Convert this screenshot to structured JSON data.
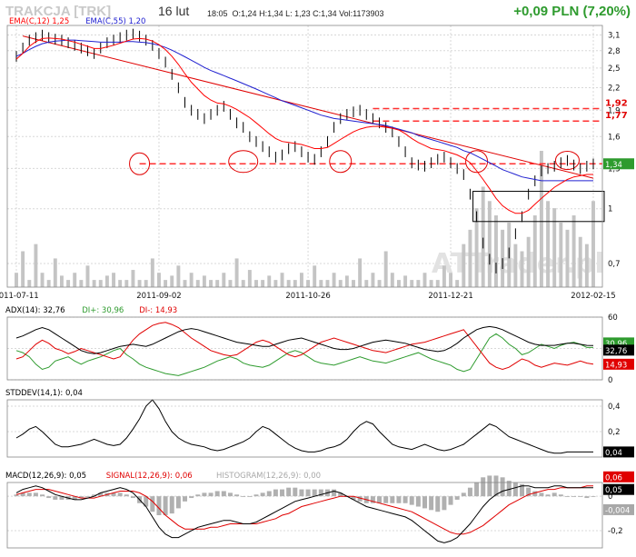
{
  "header": {
    "ticker": "TRAKCJA [TRK]",
    "date": "16 lut",
    "time": "18:05",
    "quote_line": "O:1,24  H:1,34  L: 1,23  C:1,34  Vol:1173903",
    "change": "+0,09 PLN (7,20%)"
  },
  "watermark": "ATTrader.pl",
  "colors": {
    "price": "#000000",
    "ema12": "#ff0000",
    "ema55": "#2020d0",
    "up": "#2e9b2e",
    "down": "#e00000",
    "grid": "#d8d8d8",
    "volume": "#c4c4c4"
  },
  "chart_data": [
    {
      "type": "line",
      "legend": [
        {
          "label": "EMA(C,12) 1,25",
          "color": "#ff0000"
        },
        {
          "label": "EMA(C,55) 1,20",
          "color": "#2020d0"
        }
      ],
      "x_ticks": [
        "2011-07-11",
        "2011-09-02",
        "2011-10-26",
        "2011-12-21",
        "2012-02-15"
      ],
      "y_ticks": [
        "3,1",
        "2,8",
        "2,5",
        "2,2",
        "1,9",
        "1,6",
        "1,3",
        "1",
        "0,7"
      ],
      "ylim": [
        0.6,
        3.3
      ],
      "y_scale": "log",
      "grid": true,
      "levels": [
        {
          "value": 1.92,
          "label": "1,92"
        },
        {
          "value": 1.77,
          "label": "1,77"
        },
        {
          "value": 1.34,
          "label": "1,34"
        }
      ],
      "last_price": {
        "value": 1.34,
        "label": "1,34"
      },
      "close": [
        2.7,
        2.85,
        3.0,
        3.05,
        3.1,
        3.05,
        3.02,
        3.0,
        2.95,
        2.9,
        2.85,
        2.8,
        2.75,
        2.85,
        2.95,
        3.0,
        3.05,
        3.1,
        3.12,
        3.08,
        3.0,
        2.9,
        2.75,
        2.6,
        2.4,
        2.2,
        2.0,
        1.9,
        1.85,
        1.8,
        1.85,
        1.9,
        1.95,
        1.85,
        1.75,
        1.7,
        1.6,
        1.55,
        1.5,
        1.45,
        1.4,
        1.42,
        1.48,
        1.5,
        1.45,
        1.4,
        1.38,
        1.45,
        1.55,
        1.7,
        1.8,
        1.85,
        1.88,
        1.9,
        1.85,
        1.8,
        1.75,
        1.7,
        1.65,
        1.55,
        1.45,
        1.35,
        1.33,
        1.32,
        1.35,
        1.38,
        1.4,
        1.35,
        1.3,
        1.25,
        1.1,
        0.95,
        0.8,
        0.72,
        0.68,
        0.7,
        0.75,
        0.85,
        0.95,
        1.1,
        1.2,
        1.28,
        1.3,
        1.32,
        1.35,
        1.37,
        1.33,
        1.3,
        1.32,
        1.34
      ],
      "ema12": [
        2.65,
        2.75,
        2.88,
        2.97,
        3.03,
        3.04,
        3.03,
        3.02,
        2.99,
        2.96,
        2.92,
        2.88,
        2.84,
        2.84,
        2.87,
        2.9,
        2.94,
        2.98,
        3.02,
        3.03,
        3.02,
        2.98,
        2.91,
        2.82,
        2.7,
        2.56,
        2.41,
        2.28,
        2.18,
        2.09,
        2.03,
        1.99,
        1.98,
        1.95,
        1.91,
        1.86,
        1.81,
        1.75,
        1.69,
        1.63,
        1.58,
        1.55,
        1.54,
        1.53,
        1.52,
        1.5,
        1.48,
        1.48,
        1.49,
        1.53,
        1.57,
        1.61,
        1.65,
        1.68,
        1.7,
        1.71,
        1.71,
        1.7,
        1.69,
        1.67,
        1.63,
        1.58,
        1.54,
        1.51,
        1.48,
        1.47,
        1.46,
        1.44,
        1.42,
        1.39,
        1.35,
        1.28,
        1.21,
        1.14,
        1.07,
        1.02,
        0.99,
        0.97,
        0.97,
        0.99,
        1.03,
        1.07,
        1.11,
        1.15,
        1.18,
        1.21,
        1.23,
        1.24,
        1.25,
        1.25
      ],
      "ema55": [
        2.7,
        2.75,
        2.82,
        2.88,
        2.93,
        2.96,
        2.98,
        2.99,
        3.0,
        3.0,
        2.99,
        2.98,
        2.97,
        2.96,
        2.96,
        2.96,
        2.96,
        2.97,
        2.97,
        2.96,
        2.95,
        2.93,
        2.9,
        2.86,
        2.81,
        2.75,
        2.69,
        2.63,
        2.57,
        2.51,
        2.46,
        2.42,
        2.38,
        2.34,
        2.3,
        2.26,
        2.22,
        2.18,
        2.14,
        2.1,
        2.06,
        2.02,
        1.99,
        1.96,
        1.93,
        1.9,
        1.87,
        1.84,
        1.82,
        1.8,
        1.79,
        1.78,
        1.77,
        1.76,
        1.75,
        1.74,
        1.73,
        1.72,
        1.7,
        1.68,
        1.66,
        1.64,
        1.61,
        1.59,
        1.57,
        1.55,
        1.53,
        1.51,
        1.49,
        1.46,
        1.44,
        1.41,
        1.38,
        1.35,
        1.32,
        1.29,
        1.27,
        1.25,
        1.23,
        1.22,
        1.21,
        1.2,
        1.2,
        1.2,
        1.2,
        1.2,
        1.2,
        1.2,
        1.2,
        1.2
      ],
      "volume": [
        0.1,
        0.25,
        0.05,
        0.3,
        0.1,
        0.05,
        0.2,
        0.08,
        0.05,
        0.1,
        0.05,
        0.15,
        0.05,
        0.05,
        0.08,
        0.1,
        0.05,
        0.05,
        0.12,
        0.05,
        0.05,
        0.2,
        0.1,
        0.05,
        0.08,
        0.15,
        0.05,
        0.1,
        0.05,
        0.08,
        0.05,
        0.05,
        0.1,
        0.05,
        0.2,
        0.05,
        0.12,
        0.05,
        0.05,
        0.08,
        0.05,
        0.1,
        0.05,
        0.05,
        0.1,
        0.05,
        0.15,
        0.05,
        0.05,
        0.1,
        0.05,
        0.08,
        0.05,
        0.2,
        0.05,
        0.1,
        0.05,
        0.25,
        0.1,
        0.05,
        0.08,
        0.05,
        0.05,
        0.1,
        0.05,
        0.05,
        0.15,
        0.1,
        0.05,
        0.3,
        0.4,
        0.55,
        0.7,
        0.6,
        0.5,
        0.4,
        0.45,
        0.3,
        0.25,
        0.35,
        0.5,
        0.95,
        0.6,
        0.55,
        0.45,
        0.4,
        0.5,
        0.35,
        0.3,
        0.6
      ]
    },
    {
      "type": "line",
      "title": "ADX(14): 32,76",
      "legend": [
        {
          "label": "ADX(14): 32,76",
          "color": "#000000"
        },
        {
          "label": "DI+: 30,96",
          "color": "#2e9b2e"
        },
        {
          "label": "DI-: 14,93",
          "color": "#e00000"
        }
      ],
      "y_ticks": [
        "60",
        "30",
        "0"
      ],
      "ylim": [
        0,
        60
      ],
      "last_labels": [
        {
          "value": 30.96,
          "label": "30,96"
        },
        {
          "value": 32.76,
          "label": "32,76"
        },
        {
          "value": 14.93,
          "label": "14,93"
        }
      ],
      "adx": [
        40,
        42,
        45,
        48,
        50,
        48,
        44,
        40,
        36,
        32,
        28,
        26,
        25,
        26,
        28,
        30,
        32,
        33,
        34,
        33,
        32,
        34,
        37,
        40,
        43,
        46,
        48,
        49,
        48,
        46,
        44,
        42,
        40,
        38,
        36,
        35,
        34,
        33,
        32,
        32,
        34,
        36,
        38,
        39,
        40,
        38,
        36,
        34,
        32,
        30,
        29,
        29,
        30,
        32,
        34,
        36,
        37,
        38,
        37,
        36,
        35,
        33,
        31,
        29,
        28,
        27,
        28,
        31,
        35,
        40,
        44,
        48,
        50,
        51,
        50,
        48,
        45,
        42,
        39,
        36,
        34,
        33,
        33,
        33,
        34,
        35,
        35,
        34,
        33,
        32.76
      ],
      "diplus": [
        28,
        26,
        22,
        15,
        10,
        12,
        18,
        20,
        22,
        18,
        15,
        18,
        20,
        22,
        25,
        28,
        30,
        24,
        20,
        15,
        12,
        10,
        8,
        6,
        5,
        4,
        6,
        8,
        10,
        12,
        15,
        18,
        20,
        22,
        20,
        16,
        14,
        13,
        12,
        14,
        18,
        22,
        26,
        28,
        26,
        22,
        18,
        16,
        15,
        14,
        16,
        18,
        20,
        22,
        20,
        18,
        17,
        16,
        18,
        20,
        22,
        24,
        26,
        23,
        20,
        18,
        16,
        14,
        10,
        8,
        10,
        20,
        30,
        40,
        44,
        40,
        34,
        30,
        24,
        26,
        30,
        34,
        32,
        30,
        33,
        35,
        36,
        34,
        31,
        30.96
      ],
      "diminus": [
        20,
        22,
        28,
        34,
        38,
        35,
        30,
        28,
        25,
        27,
        30,
        28,
        26,
        24,
        22,
        20,
        22,
        30,
        38,
        44,
        48,
        52,
        54,
        55,
        53,
        50,
        45,
        40,
        36,
        32,
        28,
        26,
        24,
        23,
        24,
        28,
        32,
        36,
        38,
        36,
        32,
        28,
        24,
        22,
        24,
        28,
        32,
        36,
        38,
        40,
        38,
        36,
        34,
        32,
        30,
        28,
        27,
        26,
        28,
        30,
        32,
        34,
        35,
        36,
        38,
        40,
        42,
        44,
        46,
        48,
        40,
        32,
        24,
        16,
        12,
        10,
        12,
        16,
        20,
        18,
        14,
        12,
        14,
        16,
        15,
        14,
        16,
        18,
        16,
        14.93
      ]
    },
    {
      "type": "line",
      "title": "STDDEV(14,1): 0,04",
      "y_ticks": [
        "0,4",
        "0,2"
      ],
      "ylim": [
        0,
        0.45
      ],
      "last_value": {
        "value": 0.04,
        "label": "0,04"
      },
      "values": [
        0.15,
        0.18,
        0.22,
        0.24,
        0.2,
        0.15,
        0.1,
        0.08,
        0.08,
        0.09,
        0.1,
        0.12,
        0.14,
        0.12,
        0.1,
        0.09,
        0.1,
        0.15,
        0.22,
        0.3,
        0.4,
        0.45,
        0.38,
        0.28,
        0.2,
        0.15,
        0.12,
        0.1,
        0.09,
        0.08,
        0.06,
        0.05,
        0.06,
        0.08,
        0.1,
        0.12,
        0.15,
        0.2,
        0.24,
        0.22,
        0.18,
        0.14,
        0.1,
        0.07,
        0.05,
        0.04,
        0.04,
        0.05,
        0.07,
        0.08,
        0.1,
        0.14,
        0.2,
        0.25,
        0.28,
        0.26,
        0.2,
        0.15,
        0.1,
        0.08,
        0.07,
        0.06,
        0.08,
        0.1,
        0.08,
        0.06,
        0.05,
        0.06,
        0.08,
        0.1,
        0.14,
        0.18,
        0.22,
        0.26,
        0.24,
        0.2,
        0.16,
        0.14,
        0.12,
        0.1,
        0.08,
        0.06,
        0.04,
        0.03,
        0.03,
        0.04,
        0.04,
        0.04,
        0.04,
        0.04
      ]
    },
    {
      "type": "line",
      "title": "MACD(12,26,9): 0,05",
      "legend": [
        {
          "label": "MACD(12,26,9): 0,05",
          "color": "#000000"
        },
        {
          "label": "SIGNAL(12,26,9): 0,06",
          "color": "#e00000"
        },
        {
          "label": "HISTOGRAM(12,26,9): 0,00",
          "color": "#a8a8a8"
        }
      ],
      "y_ticks": [
        "0",
        "-0,2"
      ],
      "ylim": [
        -0.3,
        0.08
      ],
      "last_labels": [
        {
          "value": 0.06,
          "label": "0,06"
        },
        {
          "value": 0.05,
          "label": "0,05"
        },
        {
          "value": -0.004,
          "label": "-0,004"
        }
      ],
      "macd": [
        0.02,
        0.04,
        0.05,
        0.06,
        0.05,
        0.03,
        0.01,
        0.0,
        -0.01,
        -0.02,
        -0.02,
        -0.01,
        0.0,
        0.02,
        0.03,
        0.04,
        0.05,
        0.04,
        0.02,
        -0.02,
        -0.06,
        -0.12,
        -0.18,
        -0.22,
        -0.24,
        -0.24,
        -0.22,
        -0.2,
        -0.18,
        -0.17,
        -0.16,
        -0.15,
        -0.14,
        -0.14,
        -0.15,
        -0.16,
        -0.16,
        -0.15,
        -0.13,
        -0.11,
        -0.09,
        -0.07,
        -0.05,
        -0.03,
        -0.02,
        -0.01,
        0.0,
        0.01,
        0.02,
        0.03,
        0.02,
        0.0,
        -0.02,
        -0.04,
        -0.06,
        -0.07,
        -0.08,
        -0.09,
        -0.1,
        -0.11,
        -0.12,
        -0.14,
        -0.17,
        -0.2,
        -0.23,
        -0.26,
        -0.27,
        -0.26,
        -0.24,
        -0.2,
        -0.16,
        -0.11,
        -0.06,
        -0.02,
        0.01,
        0.03,
        0.04,
        0.05,
        0.06,
        0.06,
        0.05,
        0.05,
        0.05,
        0.06,
        0.06,
        0.05,
        0.05,
        0.05,
        0.05,
        0.05
      ],
      "signal": [
        0.01,
        0.02,
        0.03,
        0.04,
        0.04,
        0.04,
        0.03,
        0.02,
        0.01,
        0.0,
        -0.01,
        -0.01,
        -0.01,
        0.0,
        0.01,
        0.02,
        0.03,
        0.03,
        0.03,
        0.02,
        0.0,
        -0.03,
        -0.07,
        -0.11,
        -0.14,
        -0.17,
        -0.19,
        -0.19,
        -0.19,
        -0.19,
        -0.18,
        -0.18,
        -0.17,
        -0.16,
        -0.16,
        -0.16,
        -0.16,
        -0.16,
        -0.15,
        -0.14,
        -0.13,
        -0.11,
        -0.1,
        -0.08,
        -0.06,
        -0.05,
        -0.04,
        -0.03,
        -0.02,
        -0.01,
        0.0,
        0.0,
        0.0,
        -0.01,
        -0.02,
        -0.03,
        -0.04,
        -0.05,
        -0.06,
        -0.07,
        -0.08,
        -0.09,
        -0.11,
        -0.13,
        -0.15,
        -0.17,
        -0.19,
        -0.21,
        -0.22,
        -0.22,
        -0.21,
        -0.19,
        -0.17,
        -0.14,
        -0.11,
        -0.08,
        -0.05,
        -0.03,
        -0.01,
        0.01,
        0.02,
        0.03,
        0.04,
        0.04,
        0.05,
        0.05,
        0.05,
        0.05,
        0.06,
        0.06
      ],
      "histogram": [
        0.01,
        0.02,
        0.02,
        0.02,
        0.01,
        -0.01,
        -0.02,
        -0.02,
        -0.02,
        -0.02,
        -0.01,
        0.0,
        0.01,
        0.02,
        0.02,
        0.02,
        0.02,
        0.01,
        -0.01,
        -0.04,
        -0.06,
        -0.09,
        -0.11,
        -0.11,
        -0.1,
        -0.07,
        -0.03,
        -0.01,
        0.01,
        0.02,
        0.02,
        0.03,
        0.03,
        0.02,
        0.01,
        0.0,
        0.0,
        0.01,
        0.02,
        0.03,
        0.04,
        0.04,
        0.05,
        0.05,
        0.04,
        0.04,
        0.04,
        0.04,
        0.04,
        0.04,
        0.02,
        0.0,
        -0.02,
        -0.03,
        -0.04,
        -0.04,
        -0.04,
        -0.04,
        -0.04,
        -0.04,
        -0.04,
        -0.05,
        -0.06,
        -0.07,
        -0.08,
        -0.09,
        -0.08,
        -0.05,
        -0.02,
        0.02,
        0.05,
        0.08,
        0.11,
        0.12,
        0.12,
        0.11,
        0.09,
        0.08,
        0.07,
        0.05,
        0.03,
        0.02,
        0.01,
        0.02,
        0.01,
        0.0,
        0.0,
        0.0,
        -0.01,
        0.0
      ]
    }
  ]
}
